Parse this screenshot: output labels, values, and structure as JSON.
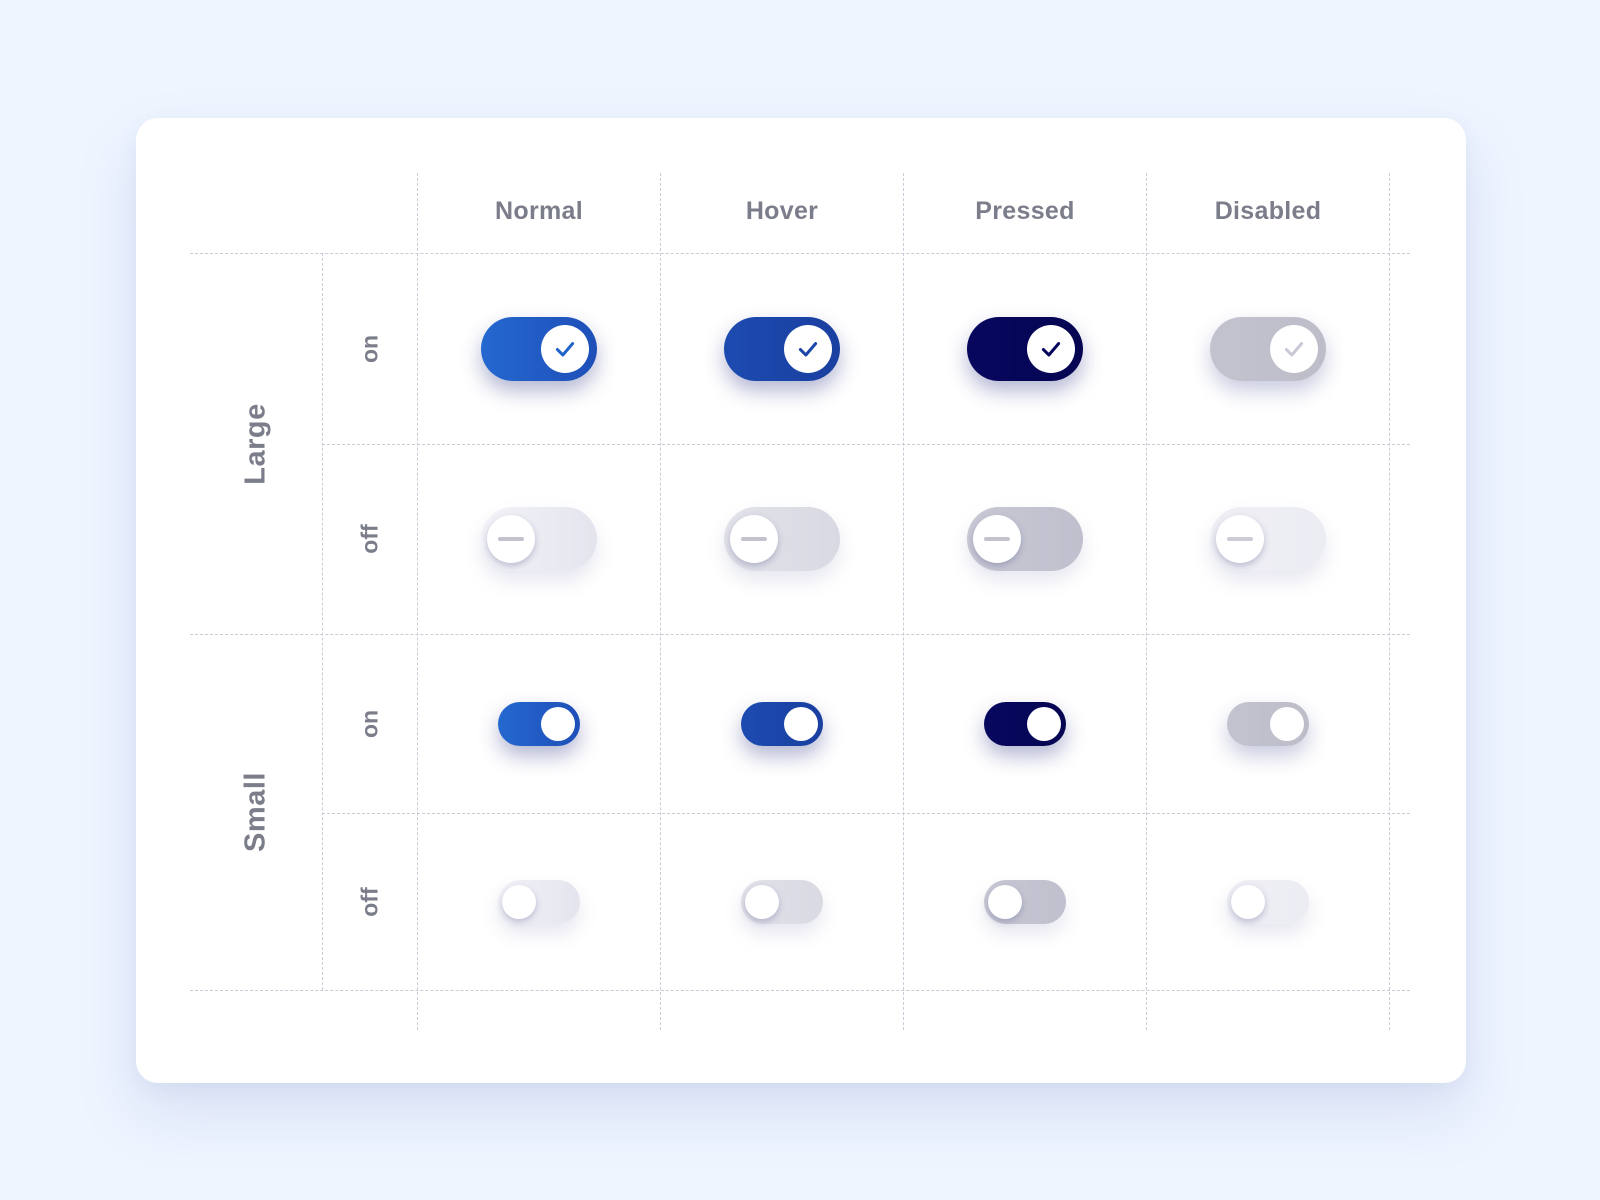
{
  "columns": [
    "Normal",
    "Hover",
    "Pressed",
    "Disabled"
  ],
  "groups": [
    {
      "label": "Large",
      "rows": [
        "on",
        "off"
      ]
    },
    {
      "label": "Small",
      "rows": [
        "on",
        "off"
      ]
    }
  ],
  "toggle_styles": {
    "on": [
      {
        "state": "Normal",
        "track": "#2468cf",
        "track_end": "#1e4fb8",
        "icon": "checkmark-icon",
        "icon_color": "#2164c9"
      },
      {
        "state": "Hover",
        "track": "#1c4bb0",
        "track_end": "#1a3fa0",
        "icon": "checkmark-icon",
        "icon_color": "#1c45a8"
      },
      {
        "state": "Pressed",
        "track": "#07075e",
        "track_end": "#050552",
        "icon": "checkmark-icon",
        "icon_color": "#07075e"
      },
      {
        "state": "Disabled",
        "track": "#c3c3cf",
        "track_end": "#bdbdca",
        "icon": "checkmark-icon",
        "icon_color": "#c9c9d6"
      }
    ],
    "off": [
      {
        "state": "Normal",
        "track": "#f3f3f8",
        "track_end": "#e4e4ee",
        "icon": "minus-icon",
        "icon_color": "#c3c3cf"
      },
      {
        "state": "Hover",
        "track": "#e2e2ea",
        "track_end": "#d9d9e3",
        "icon": "minus-icon",
        "icon_color": "#c3c3cf"
      },
      {
        "state": "Pressed",
        "track": "#c8c8d5",
        "track_end": "#bfbfcd",
        "icon": "minus-icon",
        "icon_color": "#c3c3cf"
      },
      {
        "state": "Disabled",
        "track": "#efeff5",
        "track_end": "#ececf3",
        "icon": "minus-icon",
        "icon_color": "#cdcdd8"
      }
    ]
  },
  "colors": {
    "background": "#eef5ff",
    "card": "#ffffff",
    "grid_line": "#c9cbd6",
    "label_text": "#7b7d8a"
  }
}
